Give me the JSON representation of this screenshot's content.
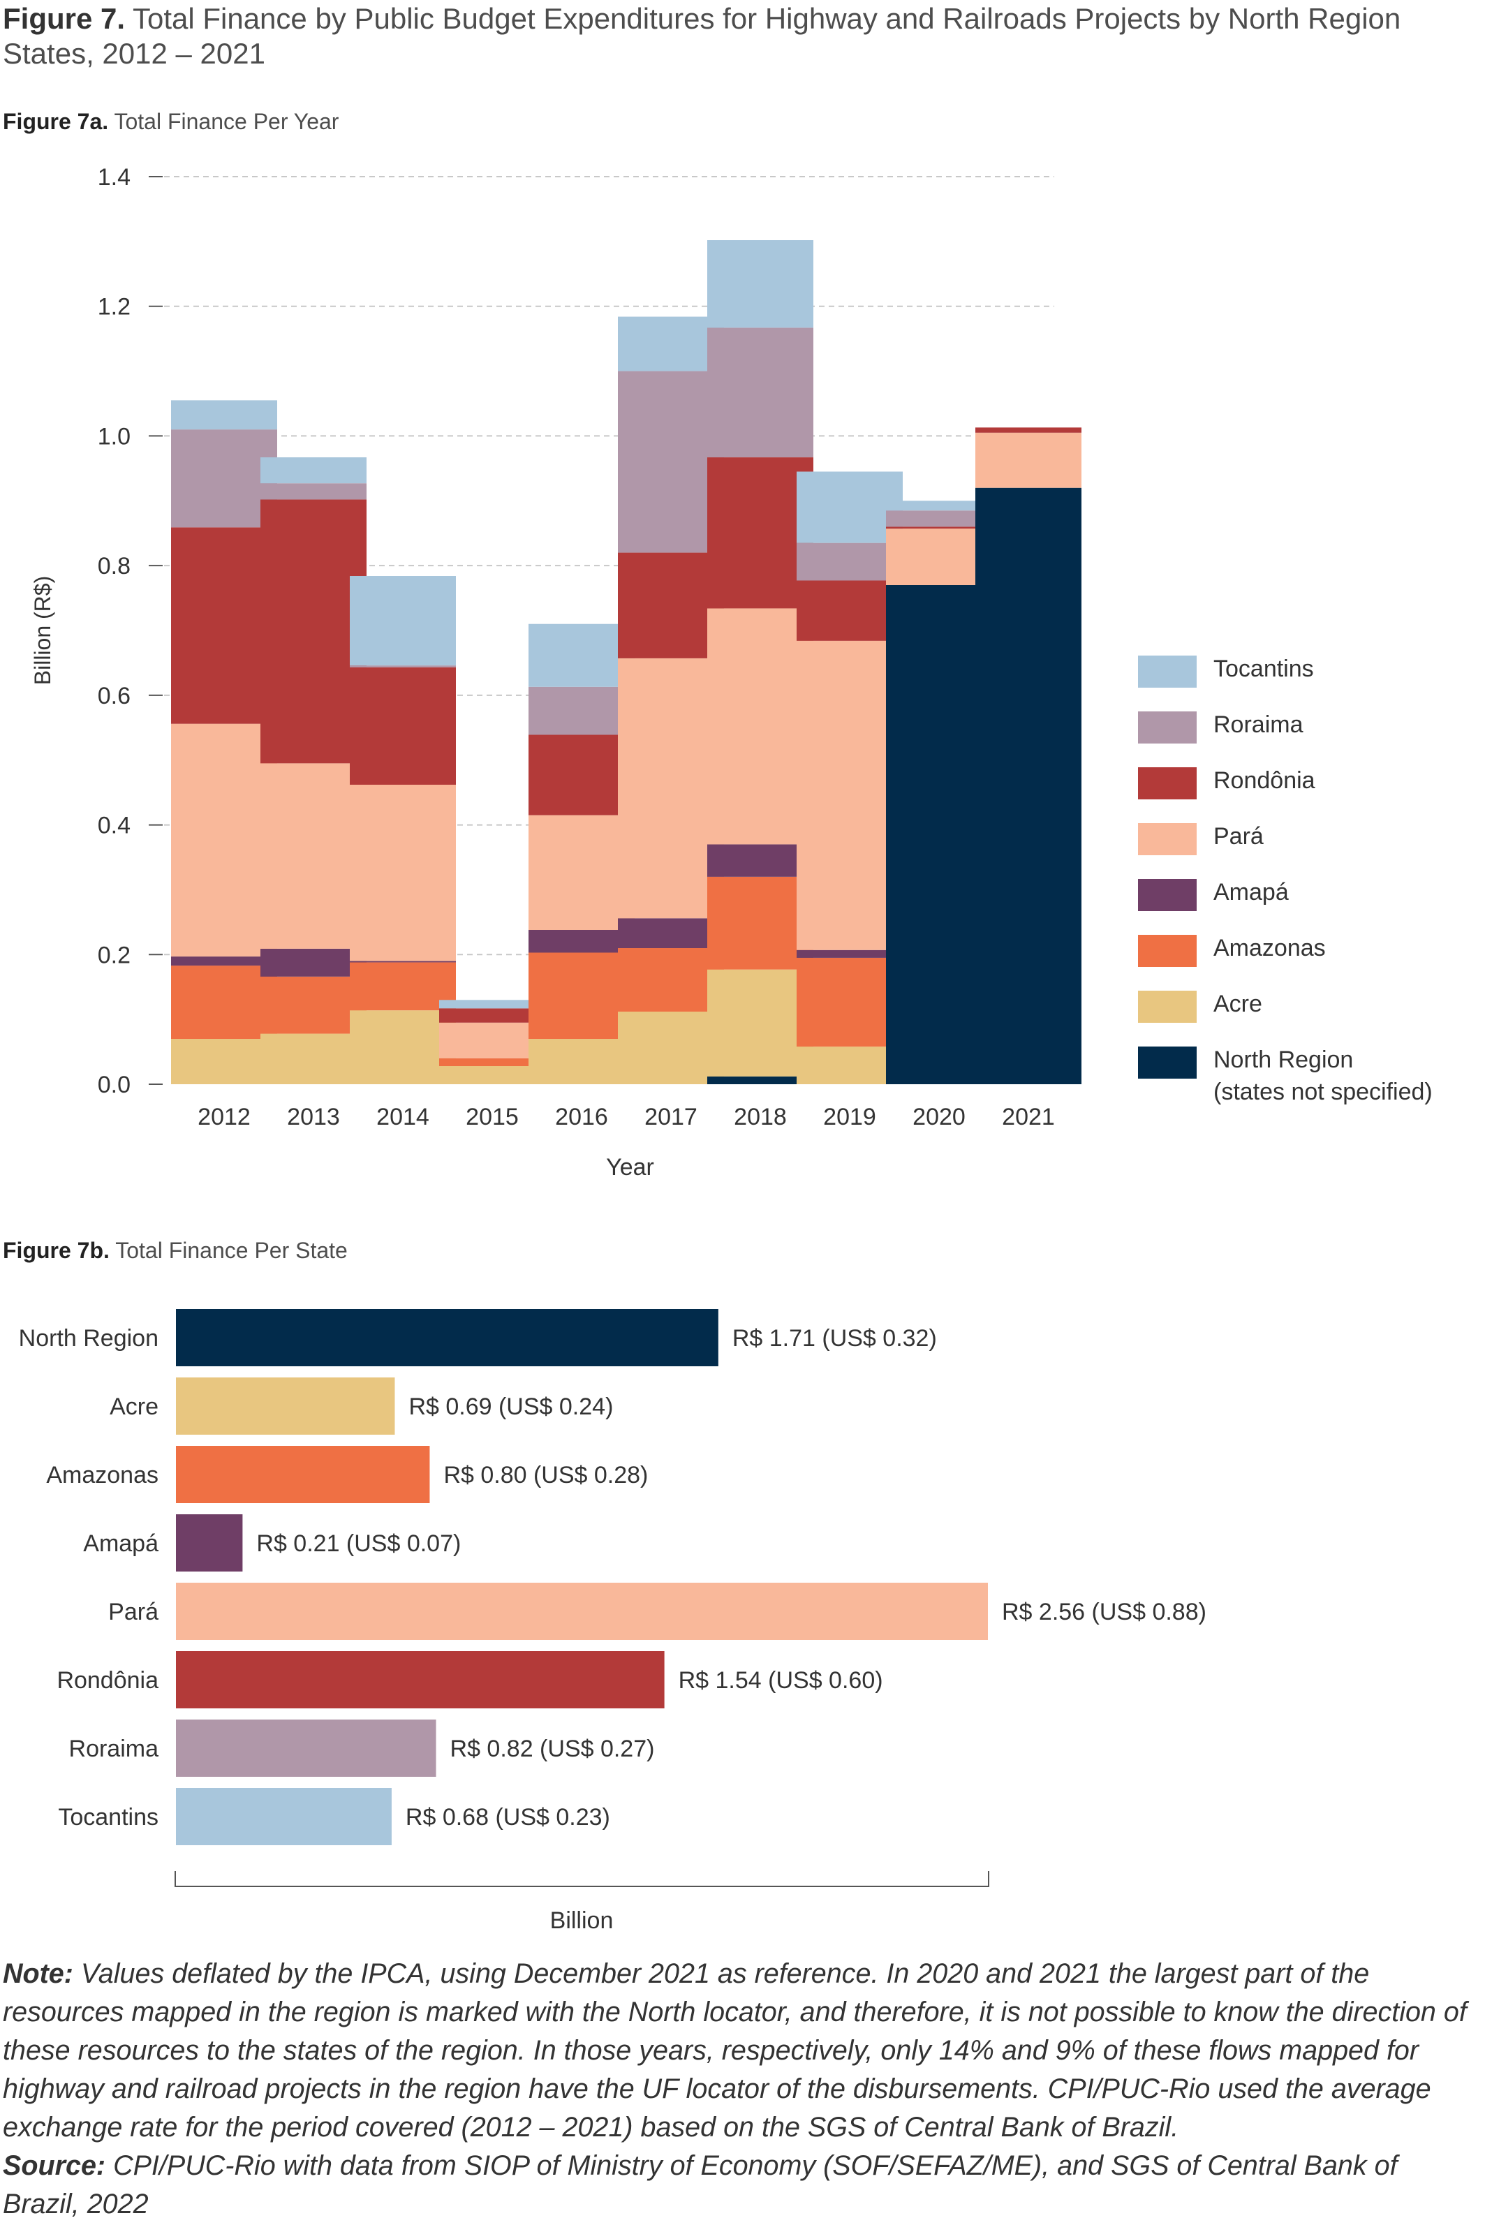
{
  "figure": {
    "label": "Figure 7.",
    "title": "Total Finance by Public Budget Expenditures for Highway and Railroads Projects by North Region States, 2012 – 2021"
  },
  "figure_a": {
    "label": "Figure 7a.",
    "title": "Total Finance Per Year"
  },
  "figure_b": {
    "label": "Figure 7b.",
    "title": "Total Finance Per State"
  },
  "colors": {
    "North Region": "#022b4b",
    "Acre": "#e8c680",
    "Amazonas": "#ef7044",
    "Amapá": "#6f3e66",
    "Pará": "#f9b89a",
    "Rondônia": "#b33a39",
    "Roraima": "#b097a9",
    "Tocantins": "#a8c6dc"
  },
  "legend": [
    {
      "key": "Tocantins",
      "label": "Tocantins"
    },
    {
      "key": "Roraima",
      "label": "Roraima"
    },
    {
      "key": "Rondônia",
      "label": "Rondônia"
    },
    {
      "key": "Pará",
      "label": "Pará"
    },
    {
      "key": "Amapá",
      "label": "Amapá"
    },
    {
      "key": "Amazonas",
      "label": "Amazonas"
    },
    {
      "key": "Acre",
      "label": "Acre"
    },
    {
      "key": "North Region",
      "label": "North Region\n(states not specified)"
    }
  ],
  "chart_data": [
    {
      "type": "bar",
      "stacked": true,
      "xlabel": "Year",
      "ylabel": "Billion (R$)",
      "ylim": [
        0,
        1.4
      ],
      "yticks": [
        0.0,
        0.2,
        0.4,
        0.6,
        0.8,
        1.0,
        1.2,
        1.4
      ],
      "ytick_labels": [
        "0.0",
        "0.2",
        "0.4",
        "0.6",
        "0.8",
        "1.0",
        "1.2",
        "1.4"
      ],
      "grid": true,
      "legend_position": "right",
      "categories": [
        "2012",
        "2013",
        "2014",
        "2015",
        "2016",
        "2017",
        "2018",
        "2019",
        "2020",
        "2021"
      ],
      "series": [
        {
          "name": "North Region",
          "values": [
            0,
            0,
            0,
            0,
            0,
            0,
            0.012,
            0,
            0.77,
            0.92
          ]
        },
        {
          "name": "Acre",
          "values": [
            0.07,
            0.078,
            0.114,
            0.028,
            0.07,
            0.112,
            0.165,
            0.058,
            0,
            0
          ]
        },
        {
          "name": "Amazonas",
          "values": [
            0.113,
            0.088,
            0.074,
            0.012,
            0.133,
            0.098,
            0.143,
            0.137,
            0,
            0
          ]
        },
        {
          "name": "Amapá",
          "values": [
            0.014,
            0.043,
            0.002,
            0,
            0.035,
            0.046,
            0.05,
            0.012,
            0,
            0
          ]
        },
        {
          "name": "Pará",
          "values": [
            0.359,
            0.286,
            0.272,
            0.055,
            0.177,
            0.401,
            0.364,
            0.477,
            0.087,
            0.085
          ]
        },
        {
          "name": "Rondônia",
          "values": [
            0.303,
            0.407,
            0.181,
            0.022,
            0.124,
            0.163,
            0.233,
            0.093,
            0.003,
            0.008
          ]
        },
        {
          "name": "Roraima",
          "values": [
            0.151,
            0.025,
            0.003,
            0,
            0.074,
            0.28,
            0.2,
            0.058,
            0.025,
            0
          ]
        },
        {
          "name": "Tocantins",
          "values": [
            0.045,
            0.04,
            0.138,
            0.013,
            0.097,
            0.084,
            0.135,
            0.11,
            0.015,
            0
          ]
        }
      ]
    },
    {
      "type": "bar",
      "orientation": "horizontal",
      "xlabel": "Billion",
      "categories": [
        "North Region",
        "Acre",
        "Amazonas",
        "Amapá",
        "Pará",
        "Rondônia",
        "Roraima",
        "Tocantins"
      ],
      "values": [
        1.71,
        0.69,
        0.8,
        0.21,
        2.56,
        1.54,
        0.82,
        0.68
      ],
      "data_labels": [
        "R$ 1.71 (US$ 0.32)",
        "R$ 0.69 (US$ 0.24)",
        "R$ 0.80 (US$ 0.28)",
        "R$ 0.21 (US$ 0.07)",
        "R$ 2.56 (US$ 0.88)",
        "R$ 1.54 (US$ 0.60)",
        "R$ 0.82 (US$ 0.27)",
        "R$ 0.68 (US$ 0.23)"
      ]
    }
  ],
  "note": {
    "label": "Note:",
    "text": "Values deflated by the IPCA, using December 2021 as reference. In 2020 and 2021 the largest part of the resources mapped in the region is marked with the North locator, and therefore, it is not possible to know the direction of these resources to the states of the region. In those years, respectively, only 14% and 9% of these flows mapped for highway and railroad projects in the region have the UF locator of the disbursements. CPI/PUC-Rio used the average exchange rate for the period covered (2012 – 2021) based on the SGS of Central Bank of Brazil.",
    "source_label": "Source:",
    "source_text": "CPI/PUC-Rio with data from SIOP of Ministry of Economy (SOF/SEFAZ/ME), and SGS of Central Bank of Brazil, 2022"
  }
}
